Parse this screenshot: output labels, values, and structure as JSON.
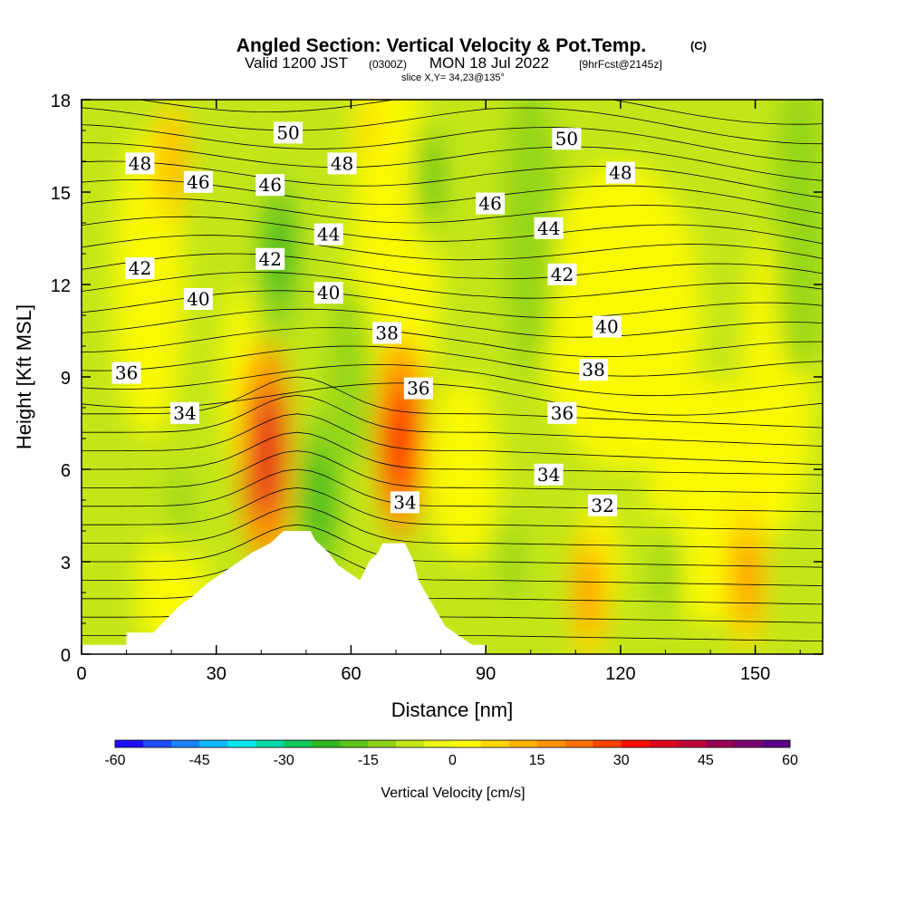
{
  "header": {
    "title": "Angled Section: Vertical Velocity & Pot.Temp.",
    "title_unit": "(C)",
    "valid_prefix": "Valid 1200 JST",
    "valid_utc": "(0300Z)",
    "valid_date": "MON 18 Jul 2022",
    "forecast": "[9hrFcst@2145z]",
    "slice": "slice X,Y= 34,23@135°"
  },
  "colorbar": {
    "label": "Vertical Velocity [cm/s]",
    "ticks": [
      "-60",
      "-45",
      "-30",
      "-15",
      "0",
      "15",
      "30",
      "45",
      "60"
    ],
    "colors": [
      "#1f0dff",
      "#1e4cff",
      "#1a82ff",
      "#0fbaff",
      "#00e8f0",
      "#00d8a8",
      "#10c860",
      "#30b820",
      "#5cc41a",
      "#90d41a",
      "#c4e619",
      "#eef715",
      "#fffb00",
      "#ffd600",
      "#ffb400",
      "#ff9400",
      "#ff7000",
      "#ff4400",
      "#ff0c00",
      "#e0001a",
      "#c00038",
      "#9a0050",
      "#7a0070",
      "#5a0088"
    ]
  },
  "chart_data": {
    "type": "contour",
    "xlabel": "Distance [nm]",
    "ylabel": "Height [Kft MSL]",
    "xlim": [
      0,
      165
    ],
    "ylim": [
      0,
      18
    ],
    "xticks": [
      "0",
      "30",
      "60",
      "90",
      "120",
      "150"
    ],
    "yticks": [
      "0",
      "3",
      "6",
      "9",
      "12",
      "15",
      "18"
    ],
    "filled_variable": "Vertical Velocity [cm/s]",
    "color_levels": [
      -60,
      60
    ],
    "vertical_velocity_features": [
      {
        "x": 41,
        "y": 6.5,
        "value": 35
      },
      {
        "x": 71,
        "y": 7.0,
        "value": 30
      },
      {
        "x": 53,
        "y": 5.0,
        "value": -25
      },
      {
        "x": 44,
        "y": 13.0,
        "value": -22
      },
      {
        "x": 78,
        "y": 15.5,
        "value": -20
      },
      {
        "x": 96,
        "y": 3.0,
        "value": -15
      },
      {
        "x": 130,
        "y": 2.5,
        "value": -15
      },
      {
        "x": 22,
        "y": 5.0,
        "value": -12
      },
      {
        "x": 148,
        "y": 2.5,
        "value": 18
      },
      {
        "x": 113,
        "y": 2.0,
        "value": 15
      },
      {
        "x": 20,
        "y": 16.0,
        "value": 12
      },
      {
        "x": 64,
        "y": 17.0,
        "value": 8
      }
    ],
    "terrain_kft": [
      [
        0,
        0.3
      ],
      [
        10,
        0.3
      ],
      [
        10,
        0.7
      ],
      [
        16,
        0.7
      ],
      [
        18,
        1.0
      ],
      [
        20,
        1.3
      ],
      [
        22,
        1.6
      ],
      [
        25,
        1.9
      ],
      [
        28,
        2.3
      ],
      [
        32,
        2.7
      ],
      [
        35,
        3.0
      ],
      [
        38,
        3.3
      ],
      [
        42,
        3.6
      ],
      [
        45,
        4.0
      ],
      [
        51,
        4.0
      ],
      [
        52,
        3.7
      ],
      [
        55,
        3.3
      ],
      [
        57,
        2.9
      ],
      [
        60,
        2.6
      ],
      [
        62,
        2.4
      ],
      [
        64,
        3.0
      ],
      [
        66,
        3.3
      ],
      [
        67,
        3.6
      ],
      [
        72,
        3.6
      ],
      [
        74,
        3.0
      ],
      [
        75,
        2.4
      ],
      [
        77,
        1.9
      ],
      [
        79,
        1.4
      ],
      [
        81,
        0.9
      ],
      [
        84,
        0.6
      ],
      [
        87,
        0.3
      ],
      [
        90,
        0.3
      ]
    ],
    "potential_temperature_labels": [
      {
        "text": "50",
        "x": 46,
        "y": 16.9
      },
      {
        "text": "50",
        "x": 108,
        "y": 16.7
      },
      {
        "text": "48",
        "x": 13,
        "y": 15.9
      },
      {
        "text": "48",
        "x": 58,
        "y": 15.9
      },
      {
        "text": "48",
        "x": 120,
        "y": 15.6
      },
      {
        "text": "46",
        "x": 26,
        "y": 15.3
      },
      {
        "text": "46",
        "x": 42,
        "y": 15.2
      },
      {
        "text": "46",
        "x": 91,
        "y": 14.6
      },
      {
        "text": "44",
        "x": 55,
        "y": 13.6
      },
      {
        "text": "44",
        "x": 104,
        "y": 13.8
      },
      {
        "text": "42",
        "x": 13,
        "y": 12.5
      },
      {
        "text": "42",
        "x": 42,
        "y": 12.8
      },
      {
        "text": "42",
        "x": 107,
        "y": 12.3
      },
      {
        "text": "40",
        "x": 26,
        "y": 11.5
      },
      {
        "text": "40",
        "x": 55,
        "y": 11.7
      },
      {
        "text": "40",
        "x": 117,
        "y": 10.6
      },
      {
        "text": "38",
        "x": 68,
        "y": 10.4
      },
      {
        "text": "38",
        "x": 114,
        "y": 9.2
      },
      {
        "text": "36",
        "x": 10,
        "y": 9.1
      },
      {
        "text": "36",
        "x": 75,
        "y": 8.6
      },
      {
        "text": "36",
        "x": 107,
        "y": 7.8
      },
      {
        "text": "34",
        "x": 23,
        "y": 7.8
      },
      {
        "text": "34",
        "x": 72,
        "y": 4.9
      },
      {
        "text": "34",
        "x": 104,
        "y": 5.8
      },
      {
        "text": "32",
        "x": 116,
        "y": 4.8
      }
    ]
  }
}
